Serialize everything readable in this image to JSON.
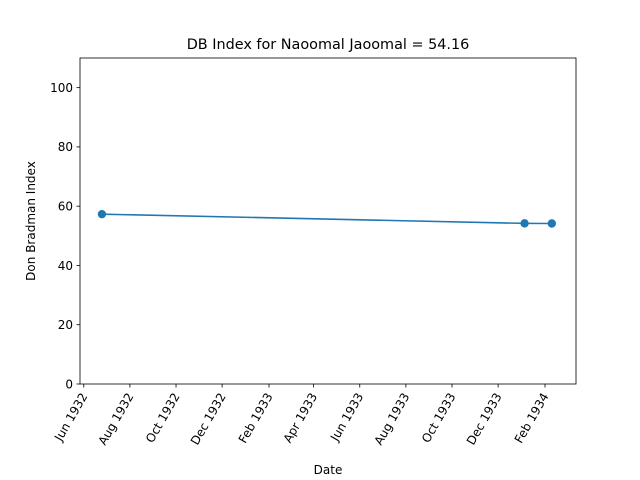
{
  "chart_data": {
    "type": "line",
    "title": "DB Index for Naoomal Jaoomal = 54.16",
    "xlabel": "Date",
    "ylabel": "Don Bradman Index",
    "ylim": [
      0,
      110
    ],
    "xlim": [
      "1932-05-27",
      "1934-03-14"
    ],
    "grid": false,
    "x_ticks": [
      {
        "date": "1932-06-01",
        "label": "Jun 1932"
      },
      {
        "date": "1932-08-01",
        "label": "Aug 1932"
      },
      {
        "date": "1932-10-01",
        "label": "Oct 1932"
      },
      {
        "date": "1932-12-01",
        "label": "Dec 1932"
      },
      {
        "date": "1933-02-01",
        "label": "Feb 1933"
      },
      {
        "date": "1933-04-01",
        "label": "Apr 1933"
      },
      {
        "date": "1933-06-01",
        "label": "Jun 1933"
      },
      {
        "date": "1933-08-01",
        "label": "Aug 1933"
      },
      {
        "date": "1933-10-01",
        "label": "Oct 1933"
      },
      {
        "date": "1933-12-01",
        "label": "Dec 1933"
      },
      {
        "date": "1934-02-01",
        "label": "Feb 1934"
      }
    ],
    "y_ticks": [
      0,
      20,
      40,
      60,
      80,
      100
    ],
    "series": [
      {
        "color": "#1f77b4",
        "x": [
          "1932-06-25",
          "1934-01-05",
          "1934-02-10"
        ],
        "y": [
          57.3,
          54.2,
          54.16
        ]
      }
    ]
  }
}
